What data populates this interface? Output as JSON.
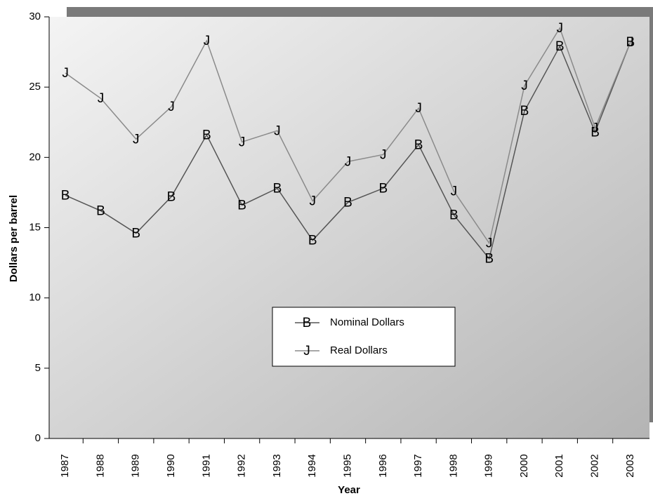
{
  "chart_data": {
    "type": "line",
    "y_label": "Dollars per barrel",
    "x_label": "Year",
    "categories": [
      "1987",
      "1988",
      "1989",
      "1990",
      "1991",
      "1992",
      "1993",
      "1994",
      "1995",
      "1996",
      "1997",
      "1998",
      "1999",
      "2000",
      "2001",
      "2002",
      "2003"
    ],
    "series": [
      {
        "name": "Nominal Dollars",
        "color": "#555555",
        "marker": "B",
        "values": [
          17.3,
          16.2,
          14.6,
          17.2,
          21.6,
          16.6,
          17.8,
          14.1,
          16.8,
          17.8,
          20.9,
          15.9,
          12.8,
          23.3,
          27.9,
          21.8,
          28.2
        ]
      },
      {
        "name": "Real Dollars",
        "color": "#8a8a8a",
        "marker": "J",
        "values": [
          26.0,
          24.2,
          21.3,
          23.6,
          28.3,
          21.1,
          21.9,
          16.9,
          19.7,
          20.2,
          23.5,
          17.6,
          13.9,
          25.1,
          29.2,
          22.1,
          28.2
        ]
      }
    ],
    "ylim": [
      0,
      30
    ],
    "yticks": [
      0,
      5,
      10,
      15,
      20,
      25,
      30
    ],
    "grid": false
  }
}
